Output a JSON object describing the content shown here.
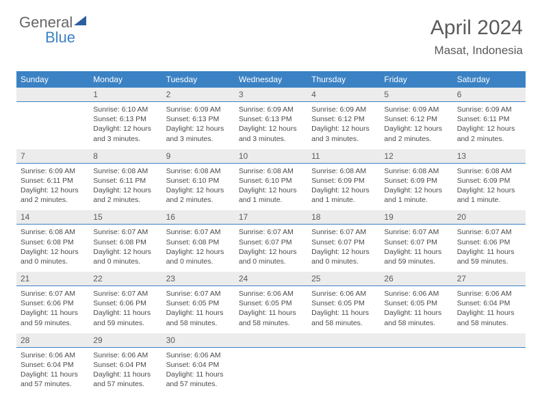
{
  "brand": {
    "part1": "General",
    "part2": "Blue"
  },
  "title": "April 2024",
  "location": "Masat, Indonesia",
  "colors": {
    "header_bg": "#3b82c4",
    "daynum_bg": "#ececec",
    "text": "#5a5a5a",
    "cell_text": "#4a4a4a",
    "border": "#3b82c4",
    "page_bg": "#ffffff"
  },
  "days": [
    "Sunday",
    "Monday",
    "Tuesday",
    "Wednesday",
    "Thursday",
    "Friday",
    "Saturday"
  ],
  "weeks": [
    {
      "nums": [
        "",
        "1",
        "2",
        "3",
        "4",
        "5",
        "6"
      ],
      "cells": [
        null,
        {
          "sr": "Sunrise: 6:10 AM",
          "ss": "Sunset: 6:13 PM",
          "d1": "Daylight: 12 hours",
          "d2": "and 3 minutes."
        },
        {
          "sr": "Sunrise: 6:09 AM",
          "ss": "Sunset: 6:13 PM",
          "d1": "Daylight: 12 hours",
          "d2": "and 3 minutes."
        },
        {
          "sr": "Sunrise: 6:09 AM",
          "ss": "Sunset: 6:13 PM",
          "d1": "Daylight: 12 hours",
          "d2": "and 3 minutes."
        },
        {
          "sr": "Sunrise: 6:09 AM",
          "ss": "Sunset: 6:12 PM",
          "d1": "Daylight: 12 hours",
          "d2": "and 3 minutes."
        },
        {
          "sr": "Sunrise: 6:09 AM",
          "ss": "Sunset: 6:12 PM",
          "d1": "Daylight: 12 hours",
          "d2": "and 2 minutes."
        },
        {
          "sr": "Sunrise: 6:09 AM",
          "ss": "Sunset: 6:11 PM",
          "d1": "Daylight: 12 hours",
          "d2": "and 2 minutes."
        }
      ]
    },
    {
      "nums": [
        "7",
        "8",
        "9",
        "10",
        "11",
        "12",
        "13"
      ],
      "cells": [
        {
          "sr": "Sunrise: 6:09 AM",
          "ss": "Sunset: 6:11 PM",
          "d1": "Daylight: 12 hours",
          "d2": "and 2 minutes."
        },
        {
          "sr": "Sunrise: 6:08 AM",
          "ss": "Sunset: 6:11 PM",
          "d1": "Daylight: 12 hours",
          "d2": "and 2 minutes."
        },
        {
          "sr": "Sunrise: 6:08 AM",
          "ss": "Sunset: 6:10 PM",
          "d1": "Daylight: 12 hours",
          "d2": "and 2 minutes."
        },
        {
          "sr": "Sunrise: 6:08 AM",
          "ss": "Sunset: 6:10 PM",
          "d1": "Daylight: 12 hours",
          "d2": "and 1 minute."
        },
        {
          "sr": "Sunrise: 6:08 AM",
          "ss": "Sunset: 6:09 PM",
          "d1": "Daylight: 12 hours",
          "d2": "and 1 minute."
        },
        {
          "sr": "Sunrise: 6:08 AM",
          "ss": "Sunset: 6:09 PM",
          "d1": "Daylight: 12 hours",
          "d2": "and 1 minute."
        },
        {
          "sr": "Sunrise: 6:08 AM",
          "ss": "Sunset: 6:09 PM",
          "d1": "Daylight: 12 hours",
          "d2": "and 1 minute."
        }
      ]
    },
    {
      "nums": [
        "14",
        "15",
        "16",
        "17",
        "18",
        "19",
        "20"
      ],
      "cells": [
        {
          "sr": "Sunrise: 6:08 AM",
          "ss": "Sunset: 6:08 PM",
          "d1": "Daylight: 12 hours",
          "d2": "and 0 minutes."
        },
        {
          "sr": "Sunrise: 6:07 AM",
          "ss": "Sunset: 6:08 PM",
          "d1": "Daylight: 12 hours",
          "d2": "and 0 minutes."
        },
        {
          "sr": "Sunrise: 6:07 AM",
          "ss": "Sunset: 6:08 PM",
          "d1": "Daylight: 12 hours",
          "d2": "and 0 minutes."
        },
        {
          "sr": "Sunrise: 6:07 AM",
          "ss": "Sunset: 6:07 PM",
          "d1": "Daylight: 12 hours",
          "d2": "and 0 minutes."
        },
        {
          "sr": "Sunrise: 6:07 AM",
          "ss": "Sunset: 6:07 PM",
          "d1": "Daylight: 12 hours",
          "d2": "and 0 minutes."
        },
        {
          "sr": "Sunrise: 6:07 AM",
          "ss": "Sunset: 6:07 PM",
          "d1": "Daylight: 11 hours",
          "d2": "and 59 minutes."
        },
        {
          "sr": "Sunrise: 6:07 AM",
          "ss": "Sunset: 6:06 PM",
          "d1": "Daylight: 11 hours",
          "d2": "and 59 minutes."
        }
      ]
    },
    {
      "nums": [
        "21",
        "22",
        "23",
        "24",
        "25",
        "26",
        "27"
      ],
      "cells": [
        {
          "sr": "Sunrise: 6:07 AM",
          "ss": "Sunset: 6:06 PM",
          "d1": "Daylight: 11 hours",
          "d2": "and 59 minutes."
        },
        {
          "sr": "Sunrise: 6:07 AM",
          "ss": "Sunset: 6:06 PM",
          "d1": "Daylight: 11 hours",
          "d2": "and 59 minutes."
        },
        {
          "sr": "Sunrise: 6:07 AM",
          "ss": "Sunset: 6:05 PM",
          "d1": "Daylight: 11 hours",
          "d2": "and 58 minutes."
        },
        {
          "sr": "Sunrise: 6:06 AM",
          "ss": "Sunset: 6:05 PM",
          "d1": "Daylight: 11 hours",
          "d2": "and 58 minutes."
        },
        {
          "sr": "Sunrise: 6:06 AM",
          "ss": "Sunset: 6:05 PM",
          "d1": "Daylight: 11 hours",
          "d2": "and 58 minutes."
        },
        {
          "sr": "Sunrise: 6:06 AM",
          "ss": "Sunset: 6:05 PM",
          "d1": "Daylight: 11 hours",
          "d2": "and 58 minutes."
        },
        {
          "sr": "Sunrise: 6:06 AM",
          "ss": "Sunset: 6:04 PM",
          "d1": "Daylight: 11 hours",
          "d2": "and 58 minutes."
        }
      ]
    },
    {
      "nums": [
        "28",
        "29",
        "30",
        "",
        "",
        "",
        ""
      ],
      "cells": [
        {
          "sr": "Sunrise: 6:06 AM",
          "ss": "Sunset: 6:04 PM",
          "d1": "Daylight: 11 hours",
          "d2": "and 57 minutes."
        },
        {
          "sr": "Sunrise: 6:06 AM",
          "ss": "Sunset: 6:04 PM",
          "d1": "Daylight: 11 hours",
          "d2": "and 57 minutes."
        },
        {
          "sr": "Sunrise: 6:06 AM",
          "ss": "Sunset: 6:04 PM",
          "d1": "Daylight: 11 hours",
          "d2": "and 57 minutes."
        },
        null,
        null,
        null,
        null
      ]
    }
  ]
}
